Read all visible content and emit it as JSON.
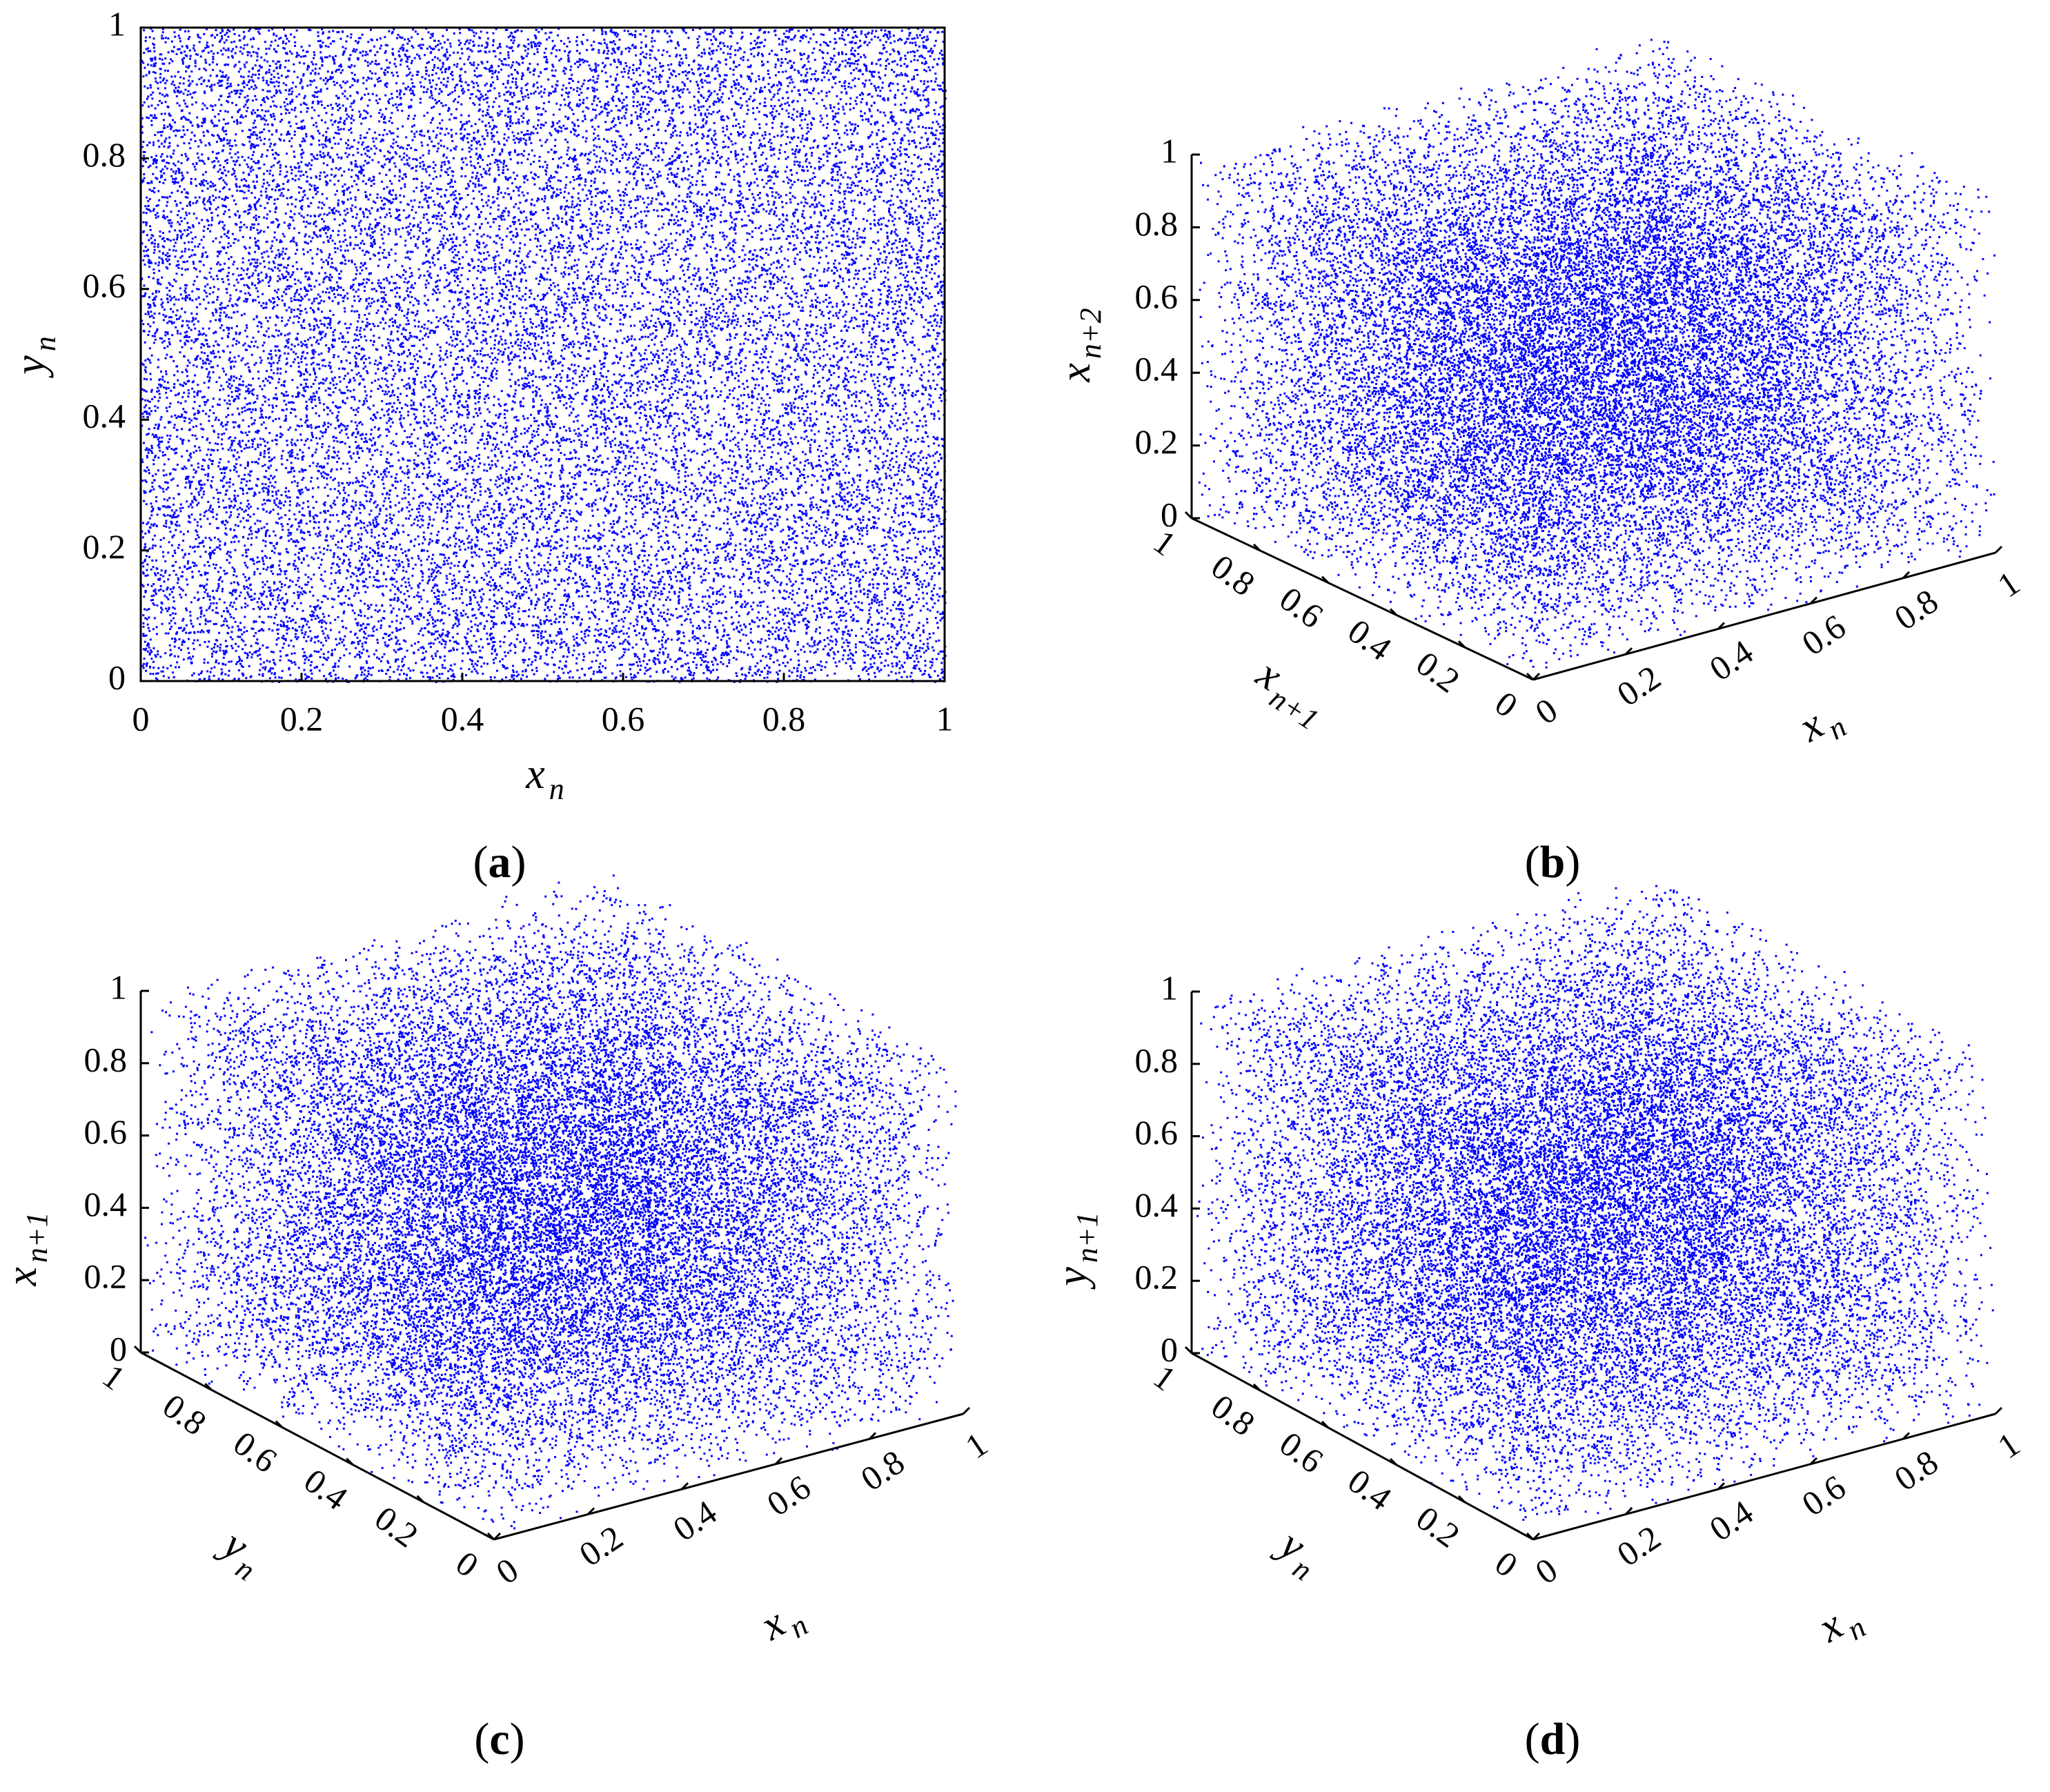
{
  "colors": {
    "points": "#0000ff",
    "axes": "#000000",
    "background": "#ffffff"
  },
  "chart_data": [
    {
      "id": "a",
      "type": "scatter",
      "caption_label": "a",
      "xlabel": {
        "base": "x",
        "sub": "n"
      },
      "ylabel": {
        "base": "y",
        "sub": "n"
      },
      "xlim": [
        0,
        1
      ],
      "ylim": [
        0,
        1
      ],
      "xticks": [
        "0",
        "0.2",
        "0.4",
        "0.6",
        "0.8",
        "1"
      ],
      "yticks": [
        "0",
        "0.2",
        "0.4",
        "0.6",
        "0.8",
        "1"
      ],
      "point_count": 22000,
      "distribution": "uniform over unit square",
      "grid": false
    },
    {
      "id": "b",
      "type": "scatter",
      "projection": "3d",
      "caption_label": "b",
      "xlabel": {
        "base": "x",
        "sub": "n"
      },
      "ylabel": {
        "base": "x",
        "sub": "n+1"
      },
      "zlabel": {
        "base": "x",
        "sub": "n+2"
      },
      "xlim": [
        0,
        1
      ],
      "ylim": [
        0,
        1
      ],
      "zlim": [
        0,
        1
      ],
      "xticks": [
        "0",
        "0.2",
        "0.4",
        "0.6",
        "0.8",
        "1"
      ],
      "yticks": [
        "0",
        "0.2",
        "0.4",
        "0.6",
        "0.8",
        "1"
      ],
      "zticks": [
        "0",
        "0.2",
        "0.4",
        "0.6",
        "0.8",
        "1"
      ],
      "point_count": 22000,
      "distribution": "uniform over unit cube",
      "grid": false
    },
    {
      "id": "c",
      "type": "scatter",
      "projection": "3d",
      "caption_label": "c",
      "xlabel": {
        "base": "x",
        "sub": "n"
      },
      "ylabel": {
        "base": "y",
        "sub": "n"
      },
      "zlabel": {
        "base": "x",
        "sub": "n+1"
      },
      "xlim": [
        0,
        1
      ],
      "ylim": [
        0,
        1
      ],
      "zlim": [
        0,
        1
      ],
      "xticks": [
        "0",
        "0.2",
        "0.4",
        "0.6",
        "0.8",
        "1"
      ],
      "yticks": [
        "0",
        "0.2",
        "0.4",
        "0.6",
        "0.8",
        "1"
      ],
      "zticks": [
        "0",
        "0.2",
        "0.4",
        "0.6",
        "0.8",
        "1"
      ],
      "point_count": 22000,
      "distribution": "uniform over unit cube",
      "grid": false
    },
    {
      "id": "d",
      "type": "scatter",
      "projection": "3d",
      "caption_label": "d",
      "xlabel": {
        "base": "x",
        "sub": "n"
      },
      "ylabel": {
        "base": "y",
        "sub": "n"
      },
      "zlabel": {
        "base": "y",
        "sub": "n+1"
      },
      "xlim": [
        0,
        1
      ],
      "ylim": [
        0,
        1
      ],
      "zlim": [
        0,
        1
      ],
      "xticks": [
        "0",
        "0.2",
        "0.4",
        "0.6",
        "0.8",
        "1"
      ],
      "yticks": [
        "0",
        "0.2",
        "0.4",
        "0.6",
        "0.8",
        "1"
      ],
      "zticks": [
        "0",
        "0.2",
        "0.4",
        "0.6",
        "0.8",
        "1"
      ],
      "point_count": 22000,
      "distribution": "uniform over unit cube",
      "grid": false
    }
  ]
}
